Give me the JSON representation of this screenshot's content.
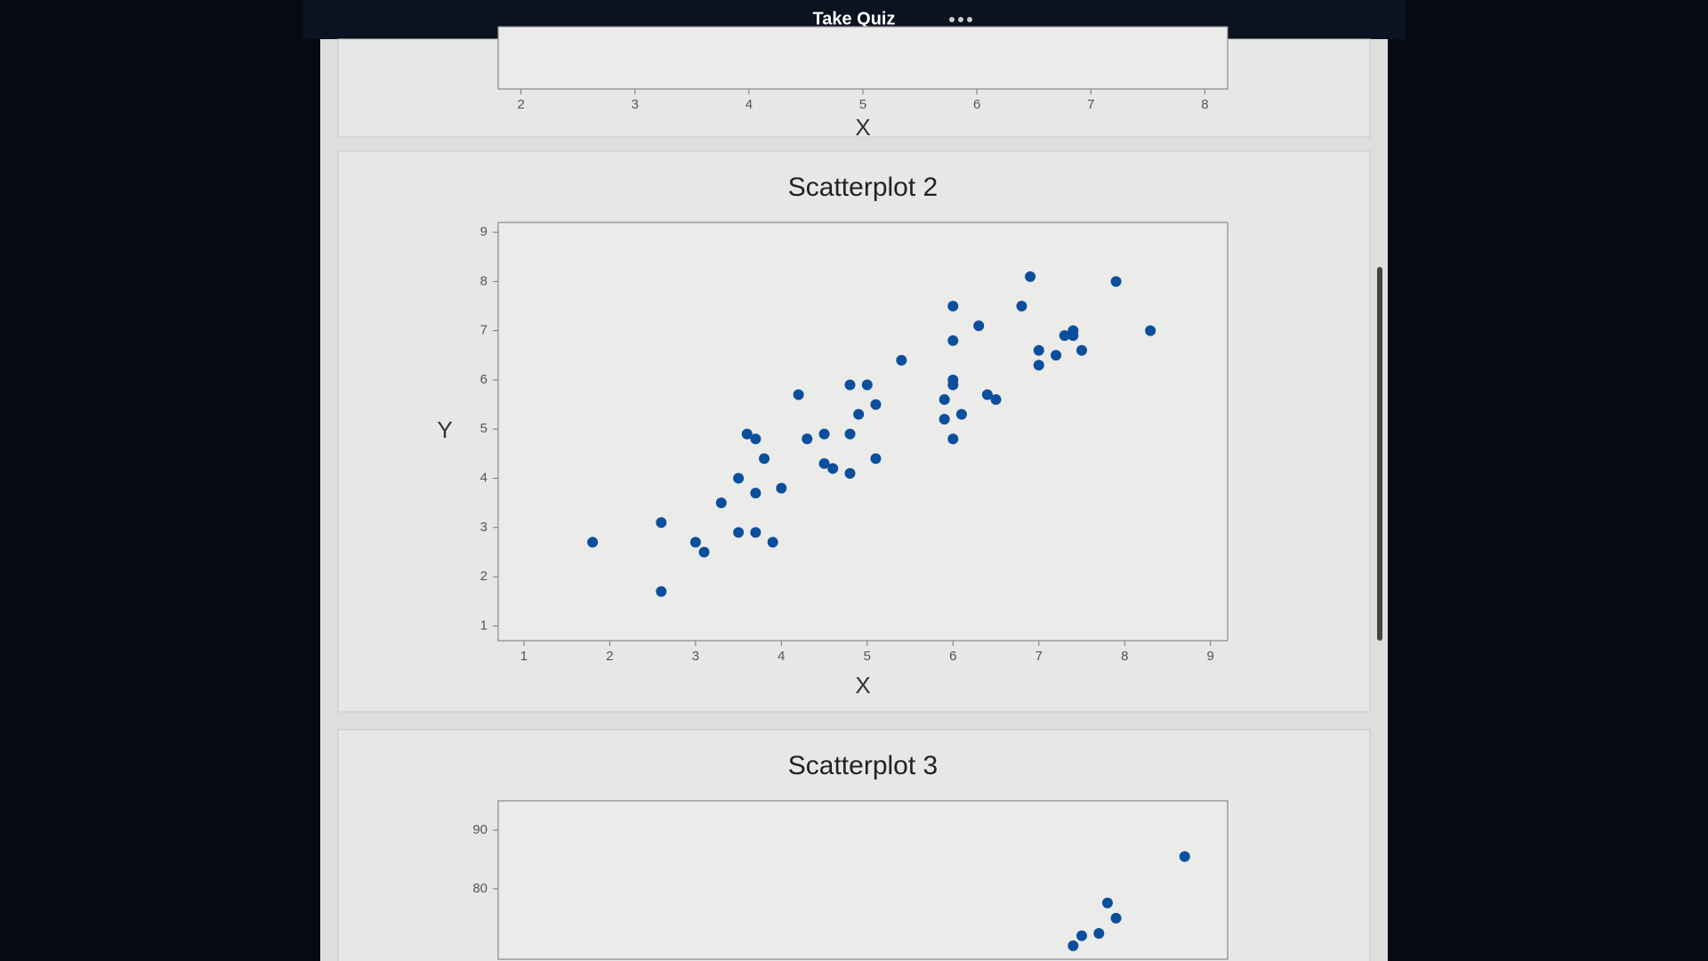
{
  "header": {
    "title": "Take Quiz"
  },
  "chart_data": [
    {
      "type": "scatter",
      "xlabel": "X",
      "xlim": [
        1.8,
        8.2
      ],
      "xticks": [
        2,
        3,
        4,
        5,
        6,
        7,
        8
      ]
    },
    {
      "type": "scatter",
      "title": "Scatterplot 2",
      "xlabel": "X",
      "ylabel": "Y",
      "color": "#0b4f9c",
      "x": [
        7.9,
        8.3,
        6.9,
        6.8,
        7.4,
        7.4,
        7.5,
        7.3,
        7.2,
        7.0,
        7.0,
        6.3,
        6.0,
        6.0,
        6.5,
        6.4,
        6.0,
        6.0,
        5.9,
        6.1,
        5.9,
        6.0,
        5.4,
        5.0,
        5.1,
        4.9,
        5.1,
        4.8,
        4.8,
        4.8,
        4.6,
        4.5,
        4.5,
        4.3,
        4.2,
        4.0,
        3.8,
        3.7,
        3.6,
        3.7,
        3.5,
        3.9,
        3.7,
        3.5,
        3.3,
        3.1,
        3.0,
        2.6,
        2.6,
        1.8
      ],
      "values": [
        8.0,
        7.0,
        8.1,
        7.5,
        6.9,
        7.0,
        6.6,
        6.9,
        6.5,
        6.6,
        6.3,
        7.1,
        7.5,
        6.8,
        5.6,
        5.7,
        6.0,
        5.9,
        5.6,
        5.3,
        5.2,
        4.8,
        6.4,
        5.9,
        5.5,
        5.3,
        4.4,
        5.9,
        4.9,
        4.1,
        4.2,
        4.3,
        4.9,
        4.8,
        5.7,
        3.8,
        4.4,
        4.8,
        4.9,
        3.7,
        4.0,
        2.7,
        2.9,
        2.9,
        3.5,
        2.5,
        2.7,
        3.1,
        1.7,
        2.7
      ],
      "xlim": [
        0.7,
        9.2
      ],
      "ylim": [
        0.7,
        9.2
      ],
      "xticks": [
        1,
        2,
        3,
        4,
        5,
        6,
        7,
        8,
        9
      ],
      "yticks": [
        1,
        2,
        3,
        4,
        5,
        6,
        7,
        8,
        9
      ]
    },
    {
      "type": "scatter",
      "title": "Scatterplot 3",
      "color": "#0b4f9c",
      "x": [
        8.7,
        7.8,
        7.9,
        7.7,
        7.5,
        7.4
      ],
      "values": [
        85.5,
        77.6,
        75.0,
        72.4,
        72.0,
        70.3
      ],
      "xlim": [
        0.7,
        9.2
      ],
      "ylim": [
        68,
        95
      ],
      "yticks": [
        80,
        90
      ]
    }
  ]
}
